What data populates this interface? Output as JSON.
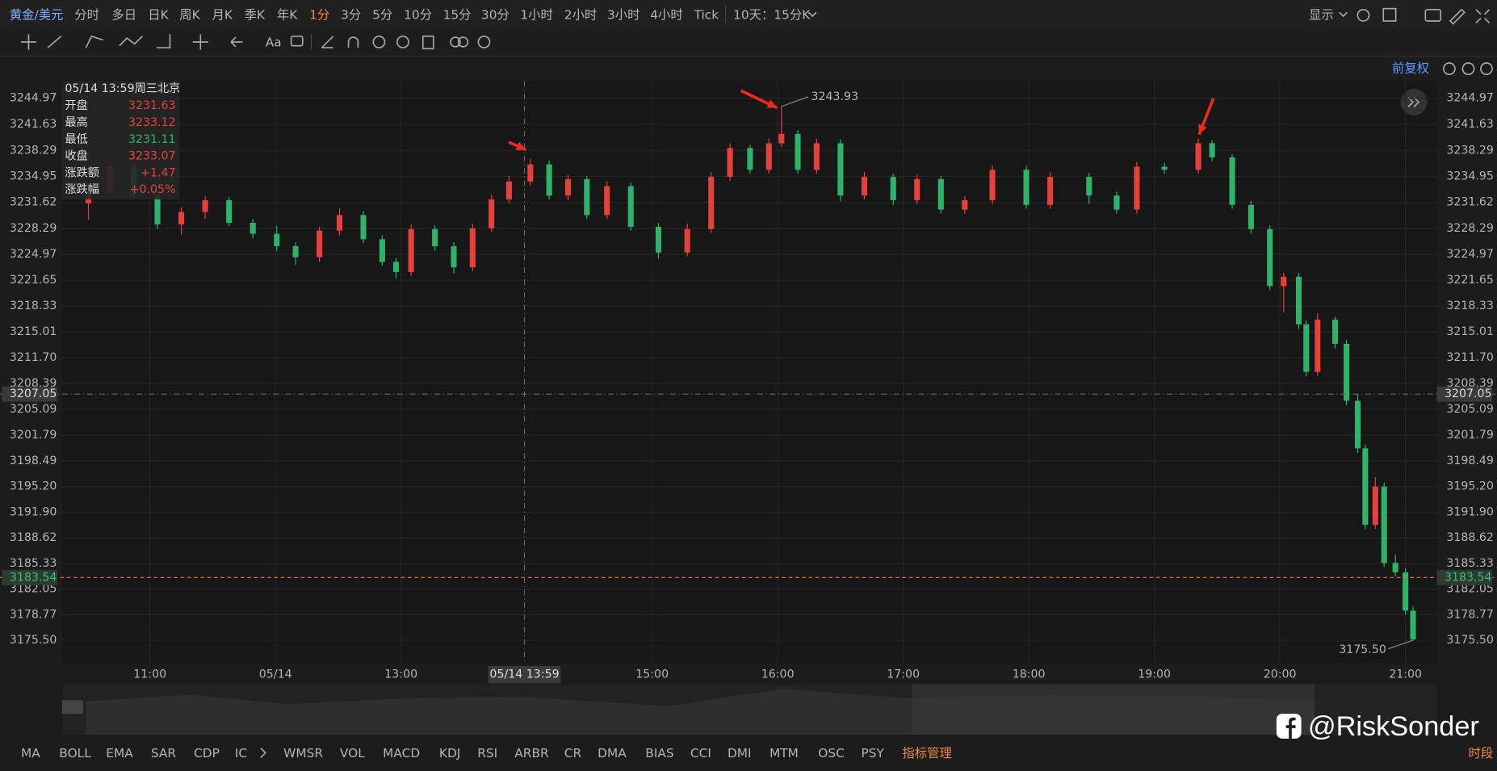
{
  "toolbar": {
    "symbol": "黄金/美元",
    "periods": [
      "分时",
      "多日",
      "日K",
      "周K",
      "月K",
      "季K",
      "年K",
      "1分",
      "3分",
      "5分",
      "10分",
      "15分",
      "30分",
      "1小时",
      "2小时",
      "3小时",
      "4小时",
      "Tick"
    ],
    "active_period": 7,
    "range": "10天：15分K",
    "display": "显示",
    "text_tool": "Aa",
    "adjust": "前复权"
  },
  "chart_data": {
    "type": "candlestick",
    "up_color": "#e5413a",
    "down_color": "#2fb36a",
    "xlim": [
      10.3,
      21.25
    ],
    "ylim": [
      3172.56,
      3247.17
    ],
    "xticks": [
      {
        "value": 11,
        "label": "11:00"
      },
      {
        "value": 12,
        "label": "05/14"
      },
      {
        "value": 13,
        "label": "13:00"
      },
      {
        "value": 15,
        "label": "15:00"
      },
      {
        "value": 16,
        "label": "16:00"
      },
      {
        "value": 17,
        "label": "17:00"
      },
      {
        "value": 18,
        "label": "18:00"
      },
      {
        "value": 19,
        "label": "19:00"
      },
      {
        "value": 20,
        "label": "20:00"
      },
      {
        "value": 21,
        "label": "21:00"
      }
    ],
    "yticks": [
      3244.97,
      3241.63,
      3238.29,
      3234.95,
      3231.62,
      3228.29,
      3224.97,
      3221.65,
      3218.33,
      3215.01,
      {
        "value": 3211.7,
        "label": "3211.70"
      },
      3208.39,
      3205.09,
      3201.79,
      3198.49,
      {
        "value": 3195.2,
        "label": "3195.20"
      },
      {
        "value": 3191.9,
        "label": "3191.90"
      },
      3188.62,
      3185.33,
      3182.05,
      3178.77,
      {
        "value": 3175.5,
        "label": "3175.50"
      }
    ],
    "grid": true,
    "candles": {
      "x": [
        10.51,
        10.68,
        10.87,
        11.06,
        11.25,
        11.44,
        11.63,
        11.82,
        12.01,
        12.16,
        12.35,
        12.51,
        12.7,
        12.85,
        12.96,
        13.08,
        13.27,
        13.42,
        13.57,
        13.72,
        13.86,
        14.03,
        14.18,
        14.33,
        14.48,
        14.64,
        14.83,
        15.05,
        15.28,
        15.47,
        15.62,
        15.78,
        15.93,
        16.03,
        16.16,
        16.31,
        16.5,
        16.69,
        16.92,
        17.11,
        17.3,
        17.49,
        17.71,
        17.98,
        18.17,
        18.48,
        18.7,
        18.86,
        19.08,
        19.35,
        19.46,
        19.62,
        19.77,
        19.92,
        20.03,
        20.15,
        20.21,
        20.3,
        20.44,
        20.53,
        20.62,
        20.68,
        20.76,
        20.83,
        20.92,
        21.0,
        21.06
      ],
      "open": [
        3231.5,
        3233.1,
        3236.2,
        3232.6,
        3228.8,
        3230.4,
        3231.9,
        3229.0,
        3227.6,
        3226.0,
        3224.6,
        3228.0,
        3230.0,
        3226.9,
        3224.0,
        3222.7,
        3228.2,
        3226.0,
        3223.3,
        3228.3,
        3232.0,
        3234.3,
        3236.5,
        3232.5,
        3234.6,
        3230.0,
        3233.7,
        3228.5,
        3225.2,
        3228.2,
        3234.9,
        3238.6,
        3235.8,
        3239.2,
        3240.4,
        3235.8,
        3239.2,
        3232.5,
        3234.9,
        3231.9,
        3234.6,
        3230.7,
        3231.9,
        3235.8,
        3231.3,
        3234.9,
        3232.5,
        3230.7,
        3236.2,
        3235.8,
        3239.2,
        3237.4,
        3231.3,
        3228.2,
        3220.9,
        3222.1,
        3216.0,
        3209.9,
        3216.6,
        3213.5,
        3206.2,
        3200.1,
        3190.3,
        3195.2,
        3185.4,
        3184.2,
        3179.3
      ],
      "high": [
        3234.0,
        3236.8,
        3236.7,
        3233.2,
        3231.0,
        3232.4,
        3232.3,
        3229.5,
        3228.6,
        3226.5,
        3228.5,
        3230.9,
        3230.5,
        3227.4,
        3224.5,
        3228.8,
        3228.7,
        3226.5,
        3228.9,
        3232.6,
        3235.0,
        3237.2,
        3237.0,
        3235.2,
        3235.0,
        3234.3,
        3234.2,
        3229.0,
        3228.9,
        3235.5,
        3239.2,
        3239.0,
        3239.8,
        3243.93,
        3240.9,
        3239.8,
        3239.7,
        3235.5,
        3235.3,
        3235.2,
        3235.0,
        3232.4,
        3236.4,
        3236.3,
        3235.5,
        3235.4,
        3233.0,
        3236.8,
        3236.7,
        3239.8,
        3239.6,
        3237.8,
        3231.8,
        3228.7,
        3222.6,
        3222.6,
        3216.5,
        3217.4,
        3217.0,
        3214.0,
        3207.1,
        3200.6,
        3196.4,
        3195.7,
        3186.5,
        3184.7,
        3179.8
      ],
      "low": [
        3229.4,
        3232.5,
        3232.0,
        3228.2,
        3227.5,
        3229.5,
        3228.6,
        3227.0,
        3225.4,
        3223.6,
        3224.0,
        3227.4,
        3226.4,
        3223.5,
        3221.9,
        3222.2,
        3225.4,
        3222.5,
        3222.8,
        3227.8,
        3231.5,
        3233.8,
        3232.0,
        3231.9,
        3229.5,
        3229.5,
        3228.0,
        3224.4,
        3224.7,
        3227.7,
        3234.4,
        3235.3,
        3235.3,
        3238.7,
        3235.3,
        3235.3,
        3231.8,
        3232.0,
        3231.3,
        3231.4,
        3230.2,
        3230.2,
        3231.4,
        3230.8,
        3230.8,
        3231.4,
        3230.2,
        3230.2,
        3235.3,
        3235.3,
        3236.9,
        3230.8,
        3227.6,
        3220.4,
        3217.5,
        3215.4,
        3209.3,
        3209.4,
        3212.9,
        3205.6,
        3199.5,
        3189.7,
        3189.8,
        3184.9,
        3183.7,
        3178.8,
        3175.5
      ],
      "close": [
        3233.1,
        3236.2,
        3232.6,
        3228.8,
        3230.4,
        3231.9,
        3229.0,
        3227.6,
        3226.0,
        3224.6,
        3228.0,
        3230.0,
        3226.9,
        3224.0,
        3222.7,
        3228.2,
        3226.0,
        3223.3,
        3228.3,
        3232.0,
        3234.3,
        3236.5,
        3232.5,
        3234.6,
        3230.0,
        3233.7,
        3228.5,
        3225.2,
        3228.2,
        3234.9,
        3238.6,
        3235.8,
        3239.2,
        3240.4,
        3235.8,
        3239.2,
        3232.5,
        3234.9,
        3231.9,
        3234.6,
        3230.7,
        3231.9,
        3235.8,
        3231.3,
        3234.9,
        3232.5,
        3230.7,
        3236.2,
        3235.8,
        3239.2,
        3237.4,
        3231.3,
        3228.2,
        3220.9,
        3222.1,
        3216.0,
        3209.9,
        3216.6,
        3213.5,
        3206.2,
        3200.1,
        3190.3,
        3195.2,
        3185.4,
        3184.2,
        3179.3,
        3175.6
      ]
    },
    "high_label": 3243.93,
    "low_label": {
      "value": 3175.5,
      "label": "3175.50"
    },
    "last_price": 3183.54,
    "last_price_color": "#e0793a",
    "crosshair": {
      "x": {
        "value": 13.983,
        "label": "05/14 13:59"
      },
      "y": 3207.05
    },
    "tooltip": {
      "title": "05/14 13:59周三北京",
      "rows": [
        {
          "label": "开盘",
          "value": "3231.63",
          "color": "#e5413a"
        },
        {
          "label": "最高",
          "value": "3233.12",
          "color": "#e5413a"
        },
        {
          "label": "最低",
          "value": "3231.11",
          "color": "#2fb36a"
        },
        {
          "label": "收盘",
          "value": "3233.07",
          "color": "#e5413a"
        },
        {
          "label": "涨跌额",
          "value": "+1.47",
          "color": "#e5413a"
        },
        {
          "label": "涨跌幅",
          "value": "+0.05%",
          "color": "#e5413a"
        }
      ]
    }
  },
  "indicators": {
    "items": [
      "MA",
      "BOLL",
      "EMA",
      "SAR",
      "CDP",
      "IC",
      "WMSR",
      "VOL",
      "MACD",
      "KDJ",
      "RSI",
      "ARBR",
      "CR",
      "DMA",
      "BIAS",
      "CCI",
      "DMI",
      "MTM",
      "OSC",
      "PSY"
    ],
    "manage": "指标管理",
    "session": "时段"
  },
  "watermark": "@RiskSonder"
}
